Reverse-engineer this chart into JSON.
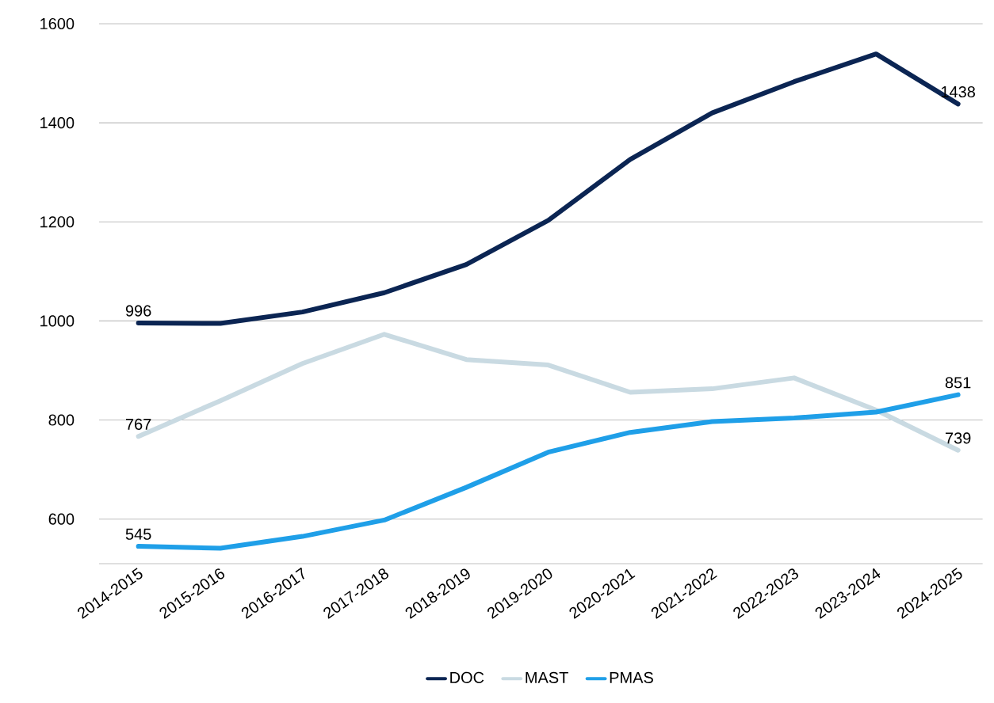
{
  "chart_data": {
    "type": "line",
    "categories": [
      "2014-2015",
      "2015-2016",
      "2016-2017",
      "2017-2018",
      "2018-2019",
      "2019-2020",
      "2020-2021",
      "2021-2022",
      "2022-2023",
      "2023-2024",
      "2024-2025"
    ],
    "series": [
      {
        "name": "DOC",
        "color": "#0b2553",
        "values": [
          996,
          995,
          1018,
          1057,
          1114,
          1203,
          1326,
          1420,
          1483,
          1539,
          1438
        ],
        "value_labels": [
          "996",
          null,
          null,
          null,
          null,
          null,
          null,
          null,
          null,
          null,
          "1438"
        ]
      },
      {
        "name": "MAST",
        "color": "#c9dae2",
        "values": [
          767,
          839,
          914,
          973,
          922,
          911,
          856,
          863,
          885,
          820,
          739
        ],
        "value_labels": [
          "767",
          null,
          null,
          null,
          null,
          null,
          null,
          null,
          null,
          null,
          "739"
        ]
      },
      {
        "name": "PMAS",
        "color": "#1f9fe8",
        "values": [
          545,
          541,
          565,
          598,
          664,
          735,
          775,
          797,
          804,
          816,
          851
        ],
        "value_labels": [
          "545",
          null,
          null,
          null,
          null,
          null,
          null,
          null,
          null,
          null,
          "851"
        ]
      }
    ],
    "ylim": [
      510,
      1600
    ],
    "yticks": [
      600,
      800,
      1000,
      1200,
      1400,
      1600
    ],
    "grid": "y",
    "legend": "bottom",
    "marker": "none",
    "line_style": "solid"
  }
}
